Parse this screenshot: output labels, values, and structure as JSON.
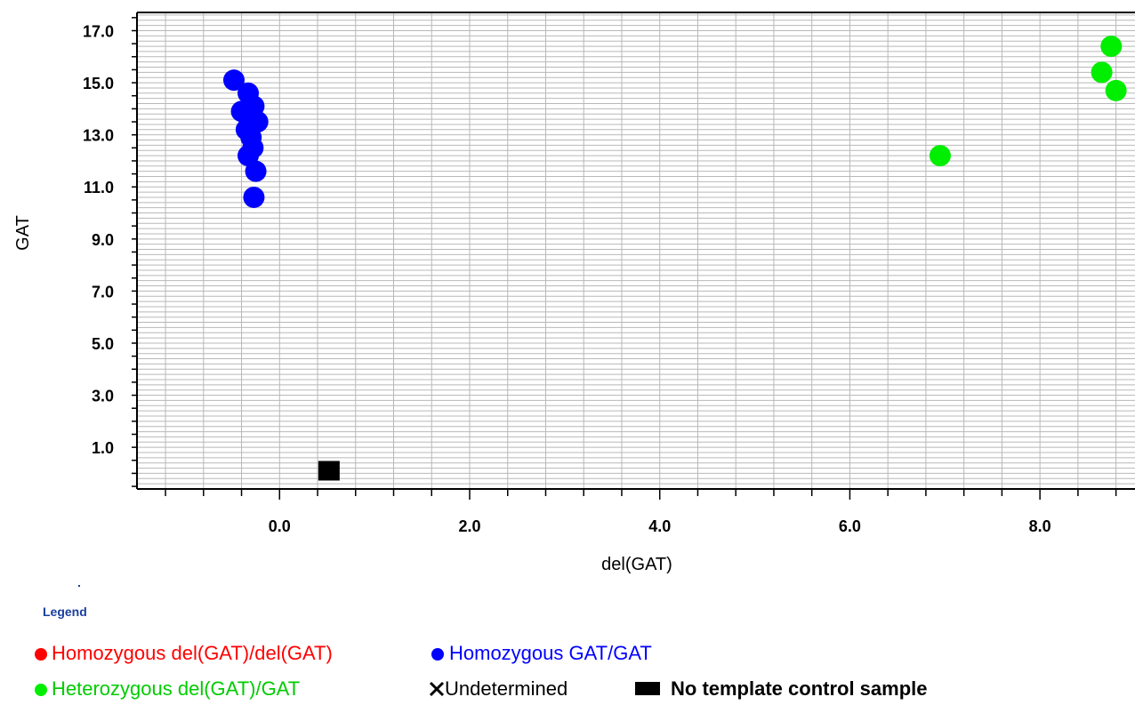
{
  "chart_data": {
    "type": "scatter",
    "xlabel": "del(GAT)",
    "ylabel": "GAT",
    "xlim": [
      -1.5,
      9.0
    ],
    "ylim": [
      -0.6,
      17.7
    ],
    "x_ticks": [
      0.0,
      2.0,
      4.0,
      6.0,
      8.0
    ],
    "x_tick_labels": [
      "0.0",
      "2.0",
      "4.0",
      "6.0",
      "8.0"
    ],
    "y_ticks": [
      1.0,
      3.0,
      5.0,
      7.0,
      9.0,
      11.0,
      13.0,
      15.0,
      17.0
    ],
    "y_tick_labels": [
      "1.0",
      "3.0",
      "5.0",
      "7.0",
      "9.0",
      "11.0",
      "13.0",
      "15.0",
      "17.0"
    ],
    "grid": true,
    "series": [
      {
        "name": "Homozygous del(GAT)/del(GAT)",
        "color": "#ff0000",
        "marker": "circle",
        "points": []
      },
      {
        "name": "Homozygous GAT/GAT",
        "color": "#0000ff",
        "marker": "circle",
        "points": [
          {
            "x": -0.48,
            "y": 15.1
          },
          {
            "x": -0.33,
            "y": 14.6
          },
          {
            "x": -0.27,
            "y": 14.1
          },
          {
            "x": -0.4,
            "y": 13.9
          },
          {
            "x": -0.32,
            "y": 13.6
          },
          {
            "x": -0.23,
            "y": 13.5
          },
          {
            "x": -0.35,
            "y": 13.2
          },
          {
            "x": -0.3,
            "y": 12.9
          },
          {
            "x": -0.28,
            "y": 12.5
          },
          {
            "x": -0.33,
            "y": 12.2
          },
          {
            "x": -0.25,
            "y": 11.6
          },
          {
            "x": -0.27,
            "y": 10.6
          }
        ]
      },
      {
        "name": "Heterozygous del(GAT)/GAT",
        "color": "#00ee00",
        "marker": "circle",
        "points": [
          {
            "x": 6.95,
            "y": 12.2
          },
          {
            "x": 8.65,
            "y": 15.4
          },
          {
            "x": 8.75,
            "y": 16.4
          },
          {
            "x": 8.8,
            "y": 14.7
          }
        ]
      },
      {
        "name": "Undetermined",
        "color": "#000000",
        "marker": "x",
        "points": []
      },
      {
        "name": "No template control sample",
        "color": "#000000",
        "marker": "square",
        "points": [
          {
            "x": 0.52,
            "y": 0.1
          }
        ]
      }
    ],
    "legend": {
      "title": "Legend",
      "placement": "bottom-left"
    }
  }
}
